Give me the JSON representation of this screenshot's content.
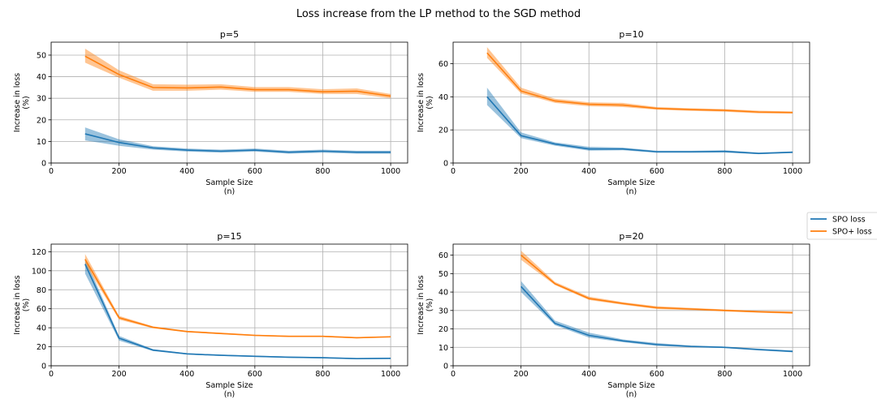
{
  "figure": {
    "title": "Loss increase from the LP method to the SGD method"
  },
  "legend": {
    "placement": "right-center",
    "entries": [
      {
        "label": "SPO loss",
        "color": "#1f77b4"
      },
      {
        "label": "SPO+ loss",
        "color": "#ff7f0e"
      }
    ]
  },
  "chart_data": [
    {
      "type": "line",
      "title": "p=5",
      "xlabel": "Sample Size\n(n)",
      "ylabel": "Increase in loss\n(%)",
      "xlim": [
        0,
        1050
      ],
      "ylim": [
        0,
        56
      ],
      "xticks": [
        0,
        200,
        400,
        600,
        800,
        1000
      ],
      "yticks": [
        0,
        10,
        20,
        30,
        40,
        50
      ],
      "grid": true,
      "series": [
        {
          "name": "SPO loss",
          "color": "#1f77b4",
          "x": [
            100,
            200,
            300,
            400,
            500,
            600,
            700,
            800,
            900,
            1000
          ],
          "y": [
            13.5,
            9.5,
            7.0,
            6.0,
            5.5,
            6.0,
            5.0,
            5.5,
            5.0,
            5.0
          ],
          "lower": [
            10.5,
            8.0,
            6.2,
            5.3,
            4.8,
            5.3,
            4.3,
            4.8,
            4.3,
            4.3
          ],
          "upper": [
            16.5,
            11.0,
            7.8,
            6.7,
            6.2,
            6.7,
            5.7,
            6.2,
            5.7,
            5.7
          ]
        },
        {
          "name": "SPO+ loss",
          "color": "#ff7f0e",
          "x": [
            100,
            200,
            300,
            400,
            500,
            600,
            700,
            800,
            900,
            1000
          ],
          "y": [
            49.5,
            41.0,
            35.0,
            34.8,
            35.2,
            34.0,
            34.0,
            33.0,
            33.3,
            31.0
          ],
          "lower": [
            46.5,
            39.5,
            33.5,
            33.5,
            34.0,
            33.0,
            33.0,
            32.0,
            32.0,
            30.0
          ],
          "upper": [
            53.0,
            43.0,
            36.5,
            36.3,
            36.5,
            35.2,
            35.2,
            34.2,
            34.6,
            32.0
          ]
        }
      ]
    },
    {
      "type": "line",
      "title": "p=10",
      "xlabel": "Sample Size\n(n)",
      "ylabel": "Increase in loss\n(%)",
      "xlim": [
        0,
        1050
      ],
      "ylim": [
        0,
        73
      ],
      "xticks": [
        0,
        200,
        400,
        600,
        800,
        1000
      ],
      "yticks": [
        0,
        20,
        40,
        60
      ],
      "grid": true,
      "series": [
        {
          "name": "SPO loss",
          "color": "#1f77b4",
          "x": [
            100,
            200,
            300,
            400,
            500,
            600,
            700,
            800,
            900,
            1000
          ],
          "y": [
            40.0,
            16.5,
            11.5,
            8.5,
            8.5,
            6.8,
            6.8,
            7.0,
            5.8,
            6.5
          ],
          "lower": [
            35.0,
            15.0,
            10.5,
            7.5,
            7.7,
            6.2,
            6.2,
            6.3,
            5.3,
            6.0
          ],
          "upper": [
            45.5,
            18.5,
            12.5,
            9.8,
            9.3,
            7.4,
            7.4,
            7.7,
            6.3,
            7.0
          ]
        },
        {
          "name": "SPO+ loss",
          "color": "#ff7f0e",
          "x": [
            100,
            200,
            300,
            400,
            500,
            600,
            700,
            800,
            900,
            1000
          ],
          "y": [
            66.5,
            43.5,
            37.5,
            35.5,
            35.0,
            33.0,
            32.3,
            31.8,
            30.8,
            30.5
          ],
          "lower": [
            63.5,
            42.0,
            36.3,
            34.3,
            33.8,
            32.2,
            31.5,
            31.0,
            30.0,
            29.8
          ],
          "upper": [
            70.0,
            45.5,
            38.8,
            36.7,
            36.3,
            33.8,
            33.1,
            32.6,
            31.6,
            31.2
          ]
        }
      ]
    },
    {
      "type": "line",
      "title": "p=15",
      "xlabel": "Sample Size\n(n)",
      "ylabel": "Increase in loss\n(%)",
      "xlim": [
        0,
        1050
      ],
      "ylim": [
        0,
        128
      ],
      "xticks": [
        0,
        200,
        400,
        600,
        800,
        1000
      ],
      "yticks": [
        0,
        20,
        40,
        60,
        80,
        100,
        120
      ],
      "grid": true,
      "series": [
        {
          "name": "SPO loss",
          "color": "#1f77b4",
          "x": [
            100,
            200,
            300,
            400,
            500,
            600,
            700,
            800,
            900,
            1000
          ],
          "y": [
            107.0,
            29.0,
            16.5,
            12.5,
            11.0,
            10.0,
            9.0,
            8.5,
            7.5,
            7.8
          ],
          "lower": [
            97.0,
            26.5,
            15.5,
            11.8,
            10.3,
            9.3,
            8.3,
            7.8,
            6.9,
            7.2
          ],
          "upper": [
            113.0,
            31.5,
            17.5,
            13.2,
            11.7,
            10.7,
            9.7,
            9.2,
            8.1,
            8.4
          ]
        },
        {
          "name": "SPO+ loss",
          "color": "#ff7f0e",
          "x": [
            100,
            200,
            300,
            400,
            500,
            600,
            700,
            800,
            900,
            1000
          ],
          "y": [
            112.0,
            50.5,
            40.5,
            36.0,
            34.0,
            32.0,
            31.0,
            31.0,
            29.5,
            30.5
          ],
          "lower": [
            107.0,
            48.5,
            39.5,
            35.2,
            33.2,
            31.3,
            30.3,
            30.3,
            28.8,
            29.8
          ],
          "upper": [
            117.5,
            52.5,
            41.5,
            36.8,
            34.8,
            32.7,
            31.7,
            31.7,
            30.2,
            31.2
          ]
        }
      ]
    },
    {
      "type": "line",
      "title": "p=20",
      "xlabel": "Sample Size\n(n)",
      "ylabel": "Increase in loss\n(%)",
      "xlim": [
        0,
        1050
      ],
      "ylim": [
        0,
        66
      ],
      "xticks": [
        0,
        200,
        400,
        600,
        800,
        1000
      ],
      "yticks": [
        0,
        10,
        20,
        30,
        40,
        50,
        60
      ],
      "grid": true,
      "series": [
        {
          "name": "SPO loss",
          "color": "#1f77b4",
          "x": [
            200,
            300,
            400,
            500,
            600,
            700,
            800,
            900,
            1000
          ],
          "y": [
            43.0,
            23.0,
            16.5,
            13.5,
            11.5,
            10.5,
            10.0,
            8.8,
            7.8
          ],
          "lower": [
            40.0,
            22.0,
            15.3,
            12.8,
            10.8,
            10.0,
            9.6,
            8.3,
            7.3
          ],
          "upper": [
            46.0,
            24.5,
            18.0,
            14.3,
            12.3,
            11.0,
            10.4,
            9.3,
            8.3
          ]
        },
        {
          "name": "SPO+ loss",
          "color": "#ff7f0e",
          "x": [
            200,
            300,
            400,
            500,
            600,
            700,
            800,
            900,
            1000
          ],
          "y": [
            60.0,
            44.5,
            36.5,
            33.8,
            31.5,
            30.8,
            30.0,
            29.3,
            28.8
          ],
          "lower": [
            57.5,
            43.8,
            35.7,
            33.1,
            30.8,
            30.2,
            29.5,
            28.8,
            28.2
          ],
          "upper": [
            62.5,
            45.5,
            37.5,
            34.5,
            32.3,
            31.4,
            30.6,
            29.8,
            29.4
          ]
        }
      ]
    }
  ]
}
